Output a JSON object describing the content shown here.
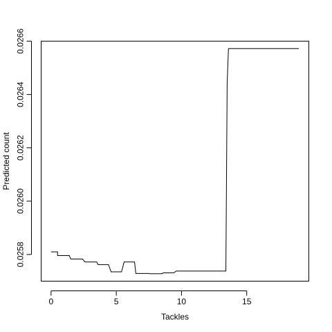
{
  "chart_data": {
    "type": "line",
    "title": "",
    "xlabel": "Tackles",
    "ylabel": "Predicted count",
    "xlim": [
      -0.76,
      19.76
    ],
    "ylim": [
      0.0257,
      0.0266
    ],
    "x_ticks": [
      0,
      5,
      10,
      15
    ],
    "x_tick_labels": [
      "0",
      "5",
      "10",
      "15"
    ],
    "y_ticks": [
      0.0258,
      0.026,
      0.0262,
      0.0264,
      0.0266
    ],
    "y_tick_labels": [
      "0.0258",
      "0.0260",
      "0.0262",
      "0.0264",
      "0.0266"
    ],
    "grid": false,
    "legend": "none",
    "series": [
      {
        "x": [
          0,
          0.5,
          0.5,
          1.4,
          1.5,
          2.4,
          2.6,
          3.5,
          3.6,
          4.4,
          4.6,
          5.4,
          5.6,
          6.4,
          6.5,
          7.5,
          7.6,
          8.5,
          8.6,
          9.4,
          9.6,
          13.4,
          13.5,
          13.6,
          19
        ],
        "y": [
          0.02581,
          0.02581,
          0.025796,
          0.025796,
          0.025783,
          0.025783,
          0.025772,
          0.025772,
          0.025762,
          0.025762,
          0.025735,
          0.025735,
          0.025772,
          0.025772,
          0.025729,
          0.025729,
          0.025728,
          0.025728,
          0.025731,
          0.025731,
          0.025738,
          0.025738,
          0.026445,
          0.026572,
          0.026572
        ]
      }
    ]
  }
}
